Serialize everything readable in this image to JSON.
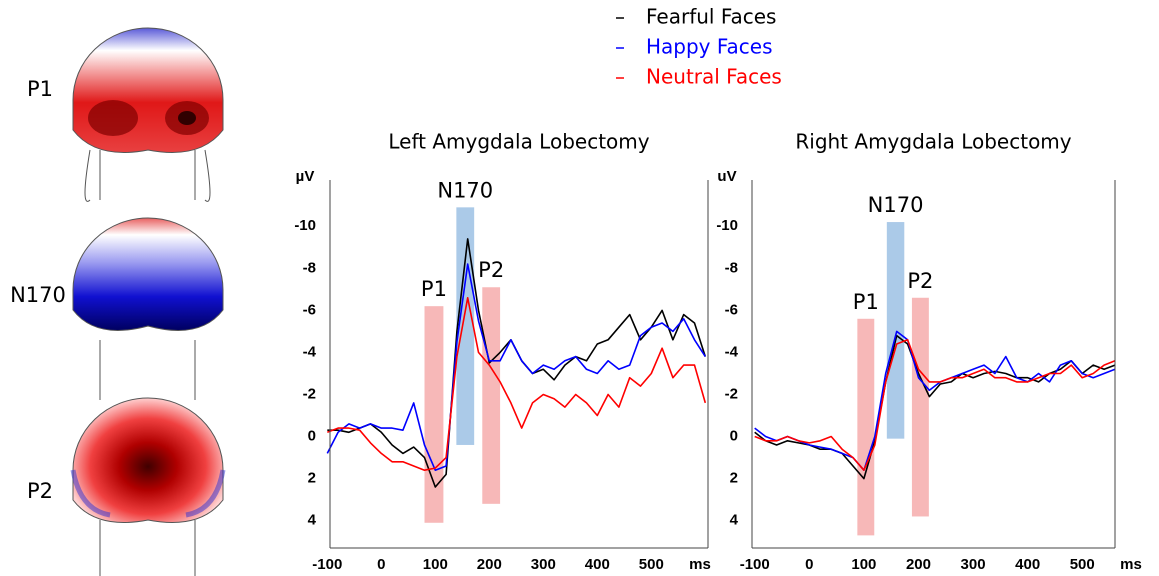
{
  "scalp_maps": {
    "labels": [
      "P1",
      "N170",
      "P2"
    ]
  },
  "chart_data": [
    {
      "type": "line",
      "title": "Left Amygdala Lobectomy",
      "x_label": "ms",
      "y_label": "µV",
      "xlim": [
        -95,
        605
      ],
      "ylim": [
        5.3,
        -12.2
      ],
      "xticks": [
        -100,
        0,
        100,
        200,
        300,
        400,
        500
      ],
      "yticks": [
        -10,
        -8,
        -6,
        -4,
        -2,
        0,
        2,
        4
      ],
      "x": [
        -100,
        -80,
        -60,
        -40,
        -20,
        0,
        20,
        40,
        60,
        80,
        100,
        120,
        140,
        160,
        180,
        200,
        220,
        240,
        260,
        280,
        300,
        320,
        340,
        360,
        380,
        400,
        420,
        440,
        460,
        480,
        500,
        520,
        540,
        560,
        580,
        600
      ],
      "series": [
        {
          "name": "Fearful Faces",
          "color": "#000000",
          "values": [
            -0.3,
            -0.3,
            -0.2,
            -0.4,
            -0.6,
            -0.2,
            0.4,
            0.8,
            0.5,
            1.0,
            2.4,
            1.8,
            -5,
            -9.4,
            -6,
            -3.5,
            -4.0,
            -4.6,
            -3.6,
            -3.0,
            -3.2,
            -2.7,
            -3.4,
            -3.8,
            -3.6,
            -4.4,
            -4.6,
            -5.2,
            -5.8,
            -4.6,
            -5.2,
            -6.0,
            -4.6,
            -5.8,
            -5.4,
            -3.8
          ]
        },
        {
          "name": "Happy Faces",
          "color": "#0000ff",
          "values": [
            0.8,
            -0.2,
            -0.6,
            -0.4,
            -0.6,
            -0.4,
            -0.4,
            -0.3,
            -1.6,
            0.4,
            1.6,
            1.4,
            -4.5,
            -8.2,
            -5.5,
            -3.6,
            -3.6,
            -4.6,
            -3.6,
            -3.0,
            -3.4,
            -3.2,
            -3.6,
            -3.8,
            -3.2,
            -3.0,
            -3.6,
            -3.2,
            -3.4,
            -4.8,
            -5.2,
            -5.4,
            -5.0,
            -5.6,
            -4.6,
            -3.8
          ]
        },
        {
          "name": "Neutral Faces",
          "color": "#ff0000",
          "values": [
            -0.2,
            -0.4,
            -0.4,
            -0.3,
            0.3,
            0.8,
            1.2,
            1.2,
            1.4,
            1.6,
            1.5,
            1.0,
            -3.8,
            -6.6,
            -4.0,
            -3.4,
            -2.6,
            -1.6,
            -0.4,
            -1.6,
            -2.0,
            -1.8,
            -1.4,
            -2.0,
            -1.6,
            -1.0,
            -2.0,
            -1.4,
            -2.8,
            -2.4,
            -3.0,
            -4.2,
            -2.8,
            -3.4,
            -3.4,
            -1.6
          ]
        }
      ],
      "windows": [
        {
          "label": "P1",
          "color": "#f4a0a0",
          "x": [
            80,
            115
          ],
          "y": [
            4.1,
            -6.2
          ]
        },
        {
          "label": "N170",
          "color": "#8fb8e0",
          "x": [
            139,
            172
          ],
          "y": [
            0.4,
            -10.9
          ]
        },
        {
          "label": "P2",
          "color": "#f4a0a0",
          "x": [
            187,
            220
          ],
          "y": [
            3.2,
            -7.1
          ]
        }
      ]
    },
    {
      "type": "line",
      "title": "Right Amygdala Lobectomy",
      "x_label": "ms",
      "y_label": "uV",
      "xlim": [
        -105,
        560
      ],
      "ylim": [
        5.3,
        -12.2
      ],
      "xticks": [
        -100,
        0,
        100,
        200,
        300,
        400,
        500
      ],
      "yticks": [
        -10,
        -8,
        -6,
        -4,
        -2,
        0,
        2,
        4
      ],
      "x": [
        -100,
        -80,
        -60,
        -40,
        -20,
        0,
        20,
        40,
        60,
        80,
        100,
        120,
        140,
        160,
        180,
        200,
        220,
        240,
        260,
        280,
        300,
        320,
        340,
        360,
        380,
        400,
        420,
        440,
        460,
        480,
        500,
        520,
        540,
        560
      ],
      "series": [
        {
          "name": "Fearful Faces",
          "color": "#000000",
          "values": [
            -0.2,
            0.2,
            0.4,
            0.2,
            0.3,
            0.4,
            0.6,
            0.6,
            0.8,
            1.4,
            2.0,
            0.2,
            -2.6,
            -4.8,
            -4.4,
            -3.0,
            -1.9,
            -2.5,
            -2.6,
            -3.0,
            -2.8,
            -3.0,
            -3.1,
            -3.0,
            -2.8,
            -2.8,
            -2.6,
            -3.0,
            -3.2,
            -3.6,
            -3.0,
            -3.4,
            -3.2,
            -3.4
          ]
        },
        {
          "name": "Happy Faces",
          "color": "#0000ff",
          "values": [
            -0.4,
            0,
            0.2,
            0,
            0.2,
            0.4,
            0.5,
            0.6,
            0.8,
            1.0,
            1.6,
            0,
            -3.0,
            -5.0,
            -4.6,
            -2.8,
            -2.2,
            -2.6,
            -2.8,
            -3.0,
            -3.2,
            -3.4,
            -3.0,
            -3.8,
            -2.8,
            -2.6,
            -3.0,
            -2.6,
            -3.4,
            -3.6,
            -3.0,
            -2.8,
            -3.0,
            -3.2
          ]
        },
        {
          "name": "Neutral Faces",
          "color": "#ff0000",
          "values": [
            0,
            0.2,
            0.2,
            0,
            0.2,
            0.3,
            0.2,
            0,
            0.6,
            1.0,
            1.6,
            0.4,
            -2.6,
            -4.4,
            -4.6,
            -3.2,
            -2.6,
            -2.6,
            -2.8,
            -2.8,
            -3.0,
            -3.2,
            -2.8,
            -2.8,
            -2.6,
            -2.6,
            -2.8,
            -3.0,
            -3.0,
            -3.4,
            -2.8,
            -3.0,
            -3.4,
            -3.6
          ]
        }
      ],
      "windows": [
        {
          "label": "P1",
          "color": "#f4a0a0",
          "x": [
            88,
            119
          ],
          "y": [
            4.7,
            -5.6
          ]
        },
        {
          "label": "N170",
          "color": "#8fb8e0",
          "x": [
            142,
            174
          ],
          "y": [
            0.1,
            -10.2
          ]
        },
        {
          "label": "P2",
          "color": "#f4a0a0",
          "x": [
            188,
            219
          ],
          "y": [
            3.8,
            -6.6
          ]
        }
      ]
    }
  ]
}
